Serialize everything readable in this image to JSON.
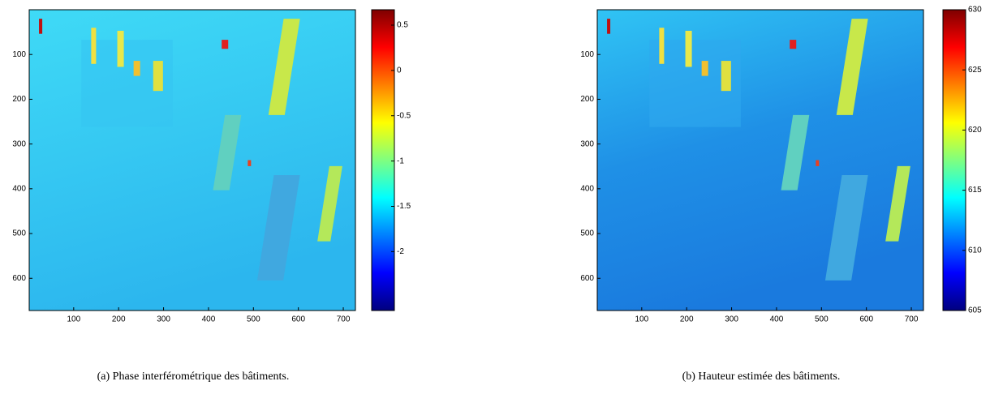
{
  "chart_data": [
    {
      "type": "image",
      "caption": "(a) Phase interférométrique des bâtiments.",
      "xlim": [
        1,
        727
      ],
      "xticks": [
        100,
        200,
        300,
        400,
        500,
        600,
        700
      ],
      "ylim": [
        0,
        672
      ],
      "yticks": [
        100,
        200,
        300,
        400,
        500,
        600
      ],
      "clim": [
        -2.65,
        0.67
      ],
      "cticks": [
        0.5,
        0,
        -0.5,
        -1,
        -1.5,
        -2
      ],
      "colormap": "jet"
    },
    {
      "type": "image",
      "caption": "(b) Hauteur estimée des bâtiments.",
      "xlim": [
        1,
        727
      ],
      "xticks": [
        100,
        200,
        300,
        400,
        500,
        600,
        700
      ],
      "ylim": [
        0,
        672
      ],
      "yticks": [
        100,
        200,
        300,
        400,
        500,
        600
      ],
      "clim": [
        605,
        630
      ],
      "cticks": [
        605,
        610,
        615,
        620,
        625,
        630
      ],
      "colormap": "jet"
    }
  ]
}
